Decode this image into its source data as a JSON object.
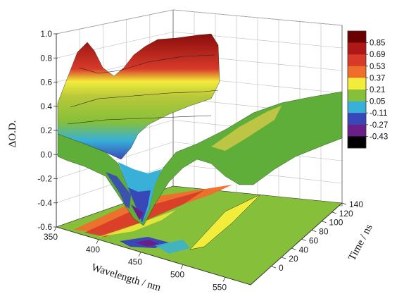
{
  "chart_data": {
    "type": "surface3d",
    "title": "",
    "zlabel": "ΔO.D.",
    "xlabel": "Wavelength / nm",
    "ylabel": "Time / ns",
    "z_ticks": [
      "1.0",
      "0.8",
      "0.6",
      "0.4",
      "0.2",
      "0.0",
      "-0.2",
      "-0.4",
      "-0.6"
    ],
    "x_ticks": [
      "350",
      "400",
      "450",
      "500",
      "550"
    ],
    "y_ticks": [
      "0",
      "20",
      "40",
      "60",
      "80",
      "100",
      "120",
      "140"
    ],
    "zlim": [
      -0.6,
      1.0
    ],
    "xlim": [
      350,
      580
    ],
    "ylim": [
      0,
      140
    ],
    "colorbar": {
      "labels": [
        "0.85",
        "0.69",
        "0.53",
        "0.37",
        "0.21",
        "0.05",
        "-0.11",
        "-0.27",
        "-0.43"
      ],
      "colors": [
        "#6b0000",
        "#b01818",
        "#d83a2a",
        "#f06e2c",
        "#f2ec3a",
        "#86c03a",
        "#38b0d8",
        "#3848b8",
        "#6a1e88",
        "#000000"
      ]
    },
    "surface_profile_t0": {
      "wavelength": [
        350,
        365,
        372,
        380,
        390,
        400,
        410,
        420,
        430,
        440,
        450,
        455,
        460,
        470,
        480,
        490,
        500,
        510,
        520,
        530,
        540,
        550,
        560,
        570,
        580
      ],
      "dOD": [
        0.32,
        0.52,
        0.66,
        0.74,
        0.62,
        0.3,
        -0.05,
        -0.35,
        -0.38,
        -0.05,
        0.08,
        0.04,
        0.0,
        -0.05,
        0.02,
        0.18,
        0.26,
        0.22,
        0.14,
        0.08,
        0.04,
        0.02,
        0.01,
        0.0,
        0.0
      ]
    }
  }
}
